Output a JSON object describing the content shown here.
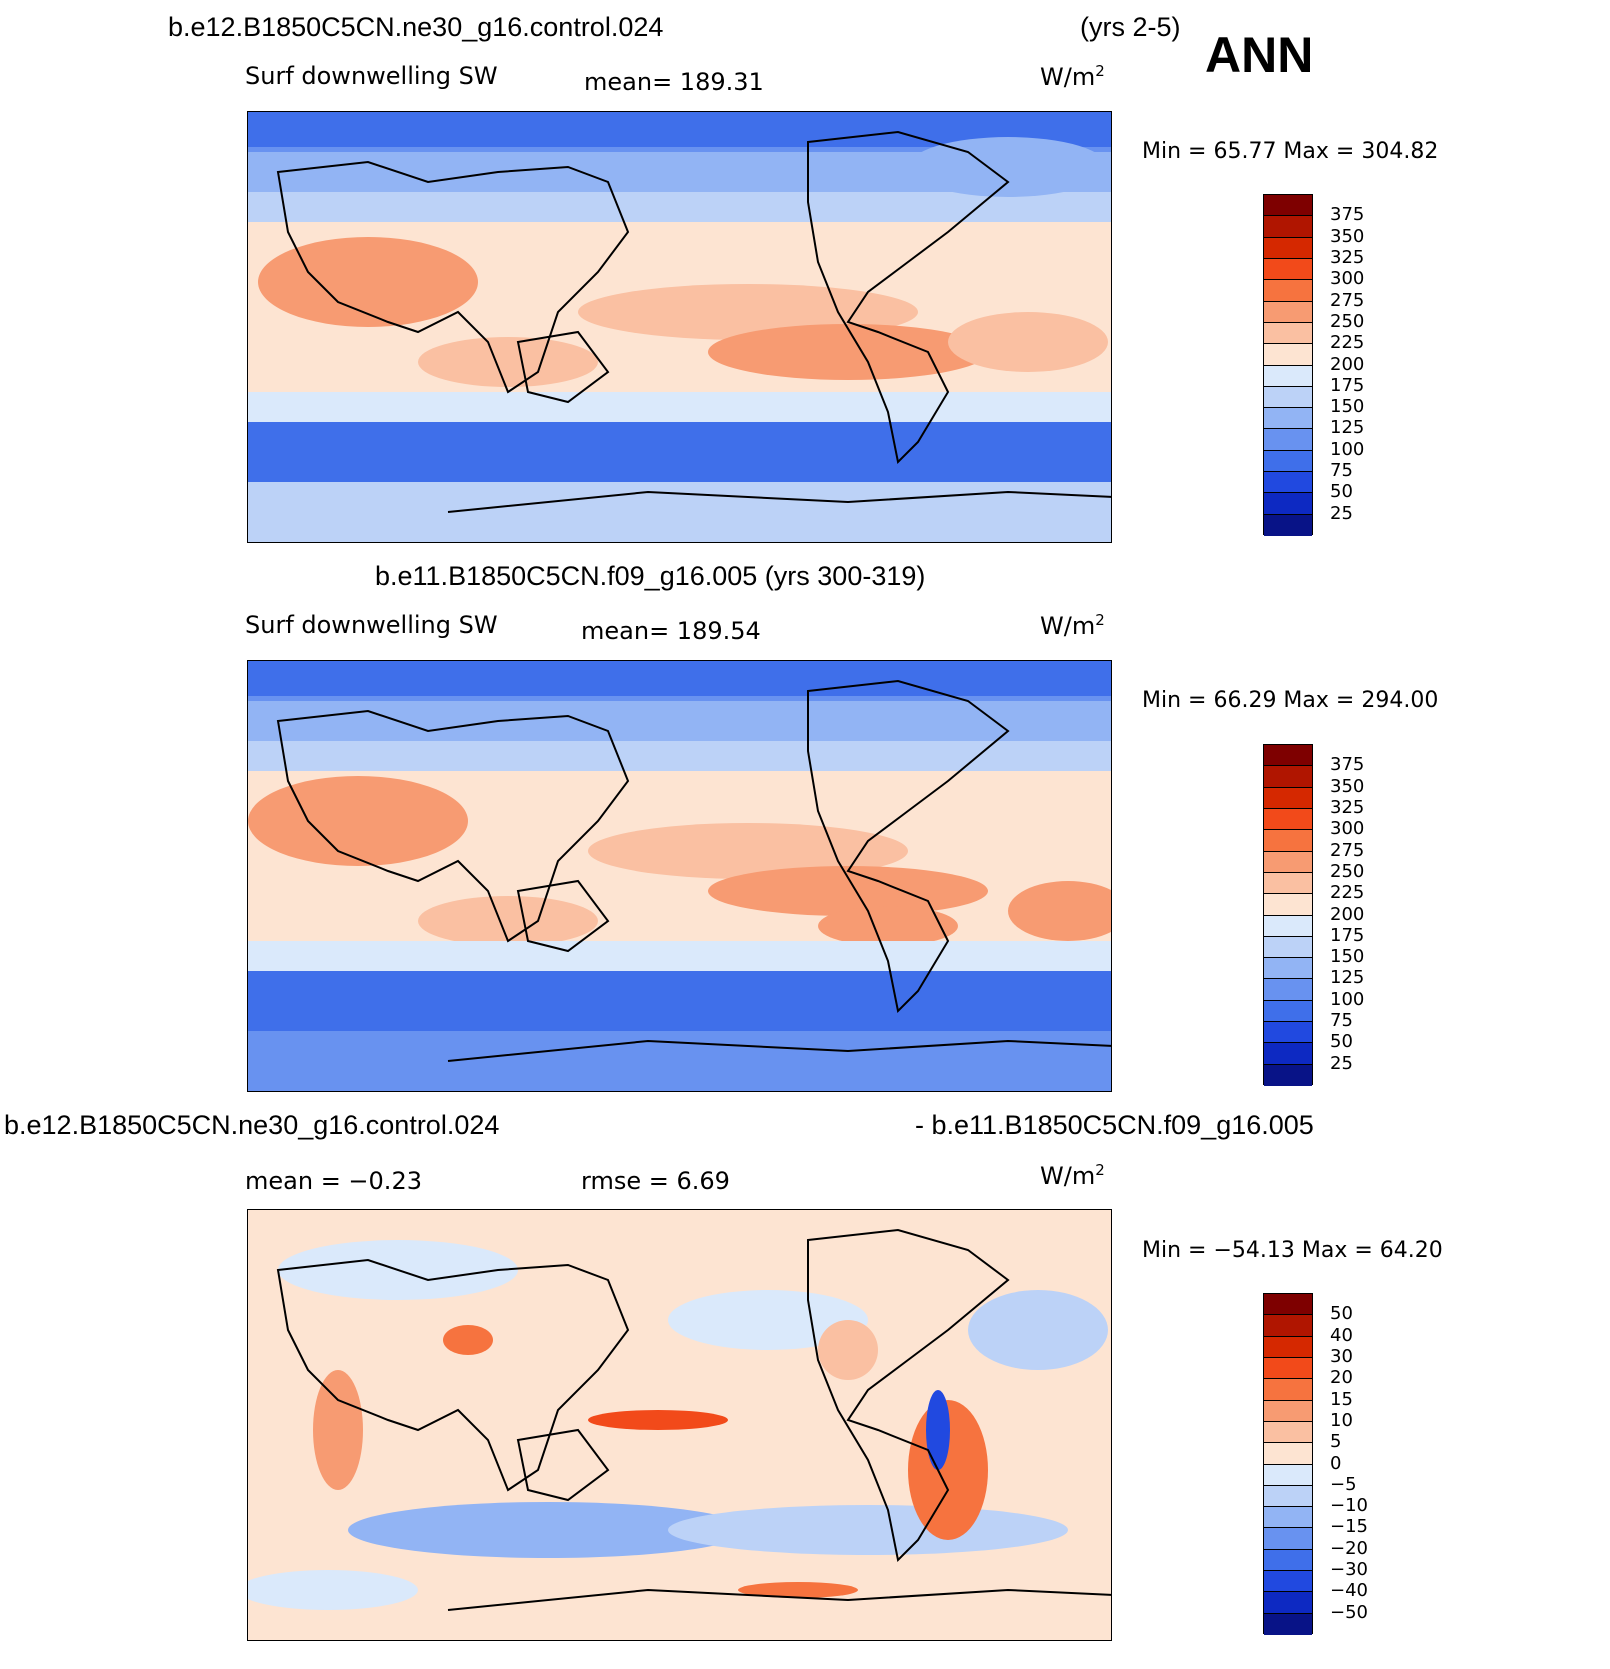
{
  "chart_data": [
    {
      "type": "heatmap",
      "title": "b.e12.B1850C5CN.ne30_g16.control.024",
      "period": "(yrs 2-5)",
      "season": "ANN",
      "variable": "Surf downwelling SW",
      "stat_text": "mean=  189.31",
      "units": "W/m",
      "units_exp": "2",
      "minmax_text": "Min =   65.77  Max  =  304.82",
      "min": 65.77,
      "max": 304.82,
      "mean": 189.31,
      "colorbar_labels": [
        "375",
        "350",
        "325",
        "300",
        "275",
        "250",
        "225",
        "200",
        "175",
        "150",
        "125",
        "100",
        "75",
        "50",
        "25"
      ],
      "colorbar_colors": [
        "#7e0000",
        "#b01500",
        "#d52800",
        "#f24a1a",
        "#f6733f",
        "#f79b72",
        "#fac0a2",
        "#fde4d2",
        "#dae9fb",
        "#bcd2f7",
        "#92b4f4",
        "#6892f0",
        "#3f6fea",
        "#2149e0",
        "#0d29c2",
        "#081387"
      ]
    },
    {
      "type": "heatmap",
      "title": "b.e11.B1850C5CN.f09_g16.005 (yrs 300-319)",
      "variable": "Surf downwelling SW",
      "stat_text": "mean=  189.54",
      "units": "W/m",
      "units_exp": "2",
      "minmax_text": "Min =   66.29  Max  =  294.00",
      "min": 66.29,
      "max": 294.0,
      "mean": 189.54,
      "colorbar_labels": [
        "375",
        "350",
        "325",
        "300",
        "275",
        "250",
        "225",
        "200",
        "175",
        "150",
        "125",
        "100",
        "75",
        "50",
        "25"
      ],
      "colorbar_colors": [
        "#7e0000",
        "#b01500",
        "#d52800",
        "#f24a1a",
        "#f6733f",
        "#f79b72",
        "#fac0a2",
        "#fde4d2",
        "#dae9fb",
        "#bcd2f7",
        "#92b4f4",
        "#6892f0",
        "#3f6fea",
        "#2149e0",
        "#0d29c2",
        "#081387"
      ]
    },
    {
      "type": "heatmap",
      "title_left": "b.e12.B1850C5CN.ne30_g16.control.024",
      "title_right": "- b.e11.B1850C5CN.f09_g16.005",
      "mean_text": "mean =   −0.23",
      "rmse_text": "rmse =    6.69",
      "units": "W/m",
      "units_exp": "2",
      "minmax_text": "Min = −54.13  Max  =   64.20",
      "min": -54.13,
      "max": 64.2,
      "mean": -0.23,
      "rmse": 6.69,
      "colorbar_labels": [
        "50",
        "40",
        "30",
        "20",
        "15",
        "10",
        "5",
        "0",
        "−5",
        "−10",
        "−15",
        "−20",
        "−30",
        "−40",
        "−50"
      ],
      "colorbar_colors": [
        "#7e0000",
        "#b01500",
        "#d52800",
        "#f24a1a",
        "#f6733f",
        "#f79b72",
        "#fac0a2",
        "#fde4d2",
        "#dae9fb",
        "#bcd2f7",
        "#92b4f4",
        "#6892f0",
        "#3f6fea",
        "#2149e0",
        "#0d29c2",
        "#081387"
      ]
    }
  ]
}
